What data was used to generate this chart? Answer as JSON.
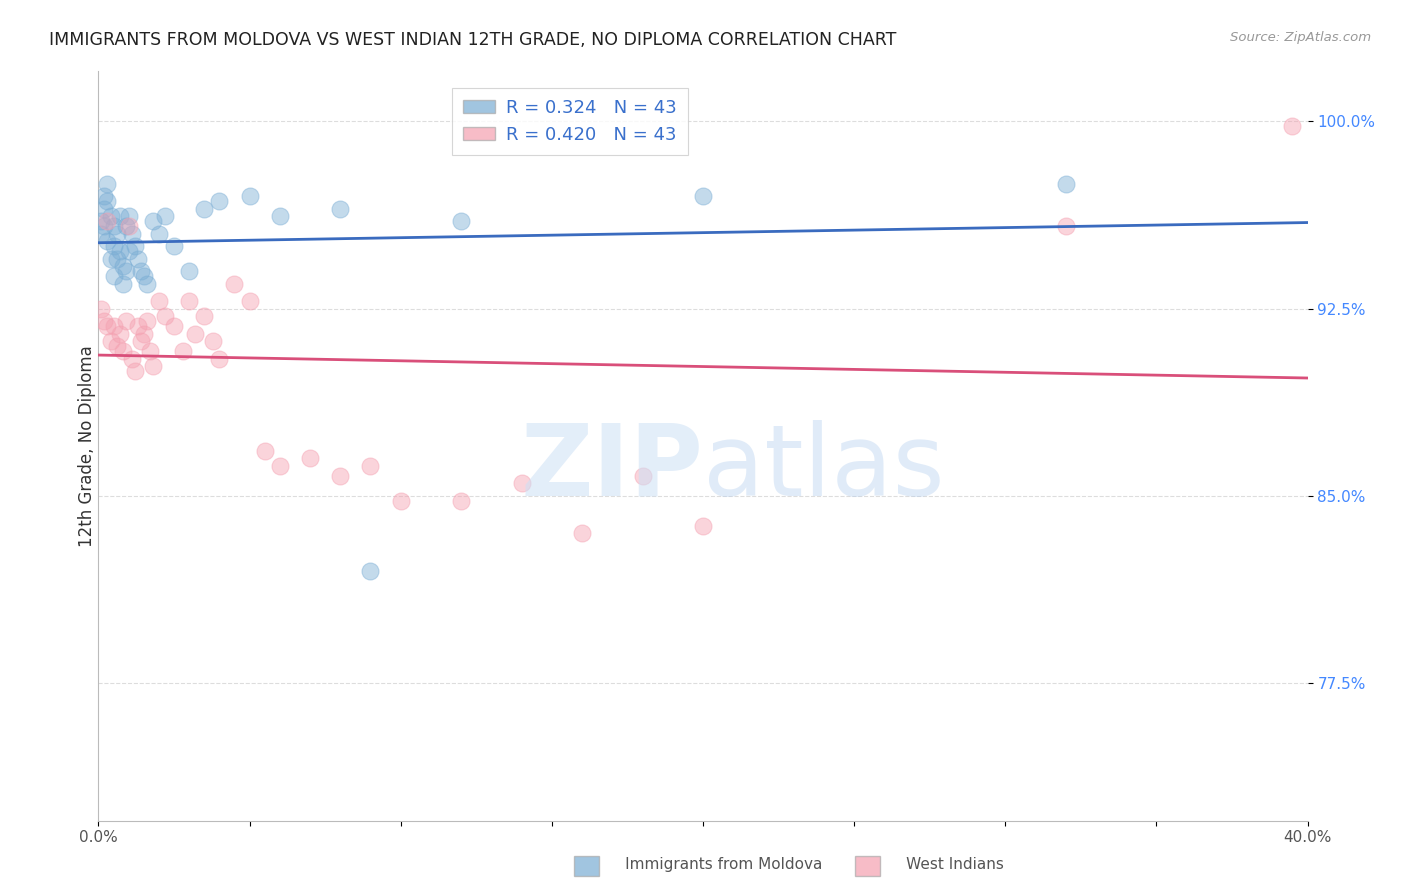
{
  "title": "IMMIGRANTS FROM MOLDOVA VS WEST INDIAN 12TH GRADE, NO DIPLOMA CORRELATION CHART",
  "source": "Source: ZipAtlas.com",
  "ylabel": "12th Grade, No Diploma",
  "xlim": [
    0.0,
    0.4
  ],
  "ylim": [
    0.72,
    1.02
  ],
  "xticks": [
    0.0,
    0.05,
    0.1,
    0.15,
    0.2,
    0.25,
    0.3,
    0.35,
    0.4
  ],
  "xticklabels": [
    "0.0%",
    "",
    "",
    "",
    "",
    "",
    "",
    "",
    "40.0%"
  ],
  "ytick_positions": [
    0.775,
    0.85,
    0.925,
    1.0
  ],
  "ytick_labels": [
    "77.5%",
    "85.0%",
    "92.5%",
    "100.0%"
  ],
  "grid_color": "#dddddd",
  "background_color": "#ffffff",
  "blue_color": "#7aadd4",
  "pink_color": "#f4a0b0",
  "blue_line_color": "#3a6bbf",
  "pink_line_color": "#d94f7a",
  "legend_R_blue": "0.324",
  "legend_N_blue": "43",
  "legend_R_pink": "0.420",
  "legend_N_pink": "43",
  "moldova_x": [
    0.001,
    0.001,
    0.002,
    0.002,
    0.002,
    0.003,
    0.003,
    0.003,
    0.004,
    0.004,
    0.005,
    0.005,
    0.005,
    0.006,
    0.006,
    0.007,
    0.007,
    0.008,
    0.008,
    0.009,
    0.009,
    0.01,
    0.01,
    0.011,
    0.012,
    0.013,
    0.014,
    0.015,
    0.016,
    0.018,
    0.02,
    0.022,
    0.025,
    0.03,
    0.035,
    0.04,
    0.05,
    0.06,
    0.08,
    0.09,
    0.12,
    0.2,
    0.32
  ],
  "moldova_y": [
    0.96,
    0.955,
    0.97,
    0.965,
    0.958,
    0.975,
    0.968,
    0.952,
    0.962,
    0.945,
    0.958,
    0.95,
    0.938,
    0.955,
    0.945,
    0.962,
    0.948,
    0.942,
    0.935,
    0.958,
    0.94,
    0.962,
    0.948,
    0.955,
    0.95,
    0.945,
    0.94,
    0.938,
    0.935,
    0.96,
    0.955,
    0.962,
    0.95,
    0.94,
    0.965,
    0.968,
    0.97,
    0.962,
    0.965,
    0.82,
    0.96,
    0.97,
    0.975
  ],
  "westindian_x": [
    0.001,
    0.002,
    0.003,
    0.003,
    0.004,
    0.005,
    0.006,
    0.007,
    0.008,
    0.009,
    0.01,
    0.011,
    0.012,
    0.013,
    0.014,
    0.015,
    0.016,
    0.017,
    0.018,
    0.02,
    0.022,
    0.025,
    0.028,
    0.03,
    0.032,
    0.035,
    0.038,
    0.04,
    0.045,
    0.05,
    0.055,
    0.06,
    0.07,
    0.08,
    0.09,
    0.1,
    0.12,
    0.14,
    0.16,
    0.18,
    0.2,
    0.32,
    0.395
  ],
  "westindian_y": [
    0.925,
    0.92,
    0.918,
    0.96,
    0.912,
    0.918,
    0.91,
    0.915,
    0.908,
    0.92,
    0.958,
    0.905,
    0.9,
    0.918,
    0.912,
    0.915,
    0.92,
    0.908,
    0.902,
    0.928,
    0.922,
    0.918,
    0.908,
    0.928,
    0.915,
    0.922,
    0.912,
    0.905,
    0.935,
    0.928,
    0.868,
    0.862,
    0.865,
    0.858,
    0.862,
    0.848,
    0.848,
    0.855,
    0.835,
    0.858,
    0.838,
    0.958,
    0.998
  ]
}
